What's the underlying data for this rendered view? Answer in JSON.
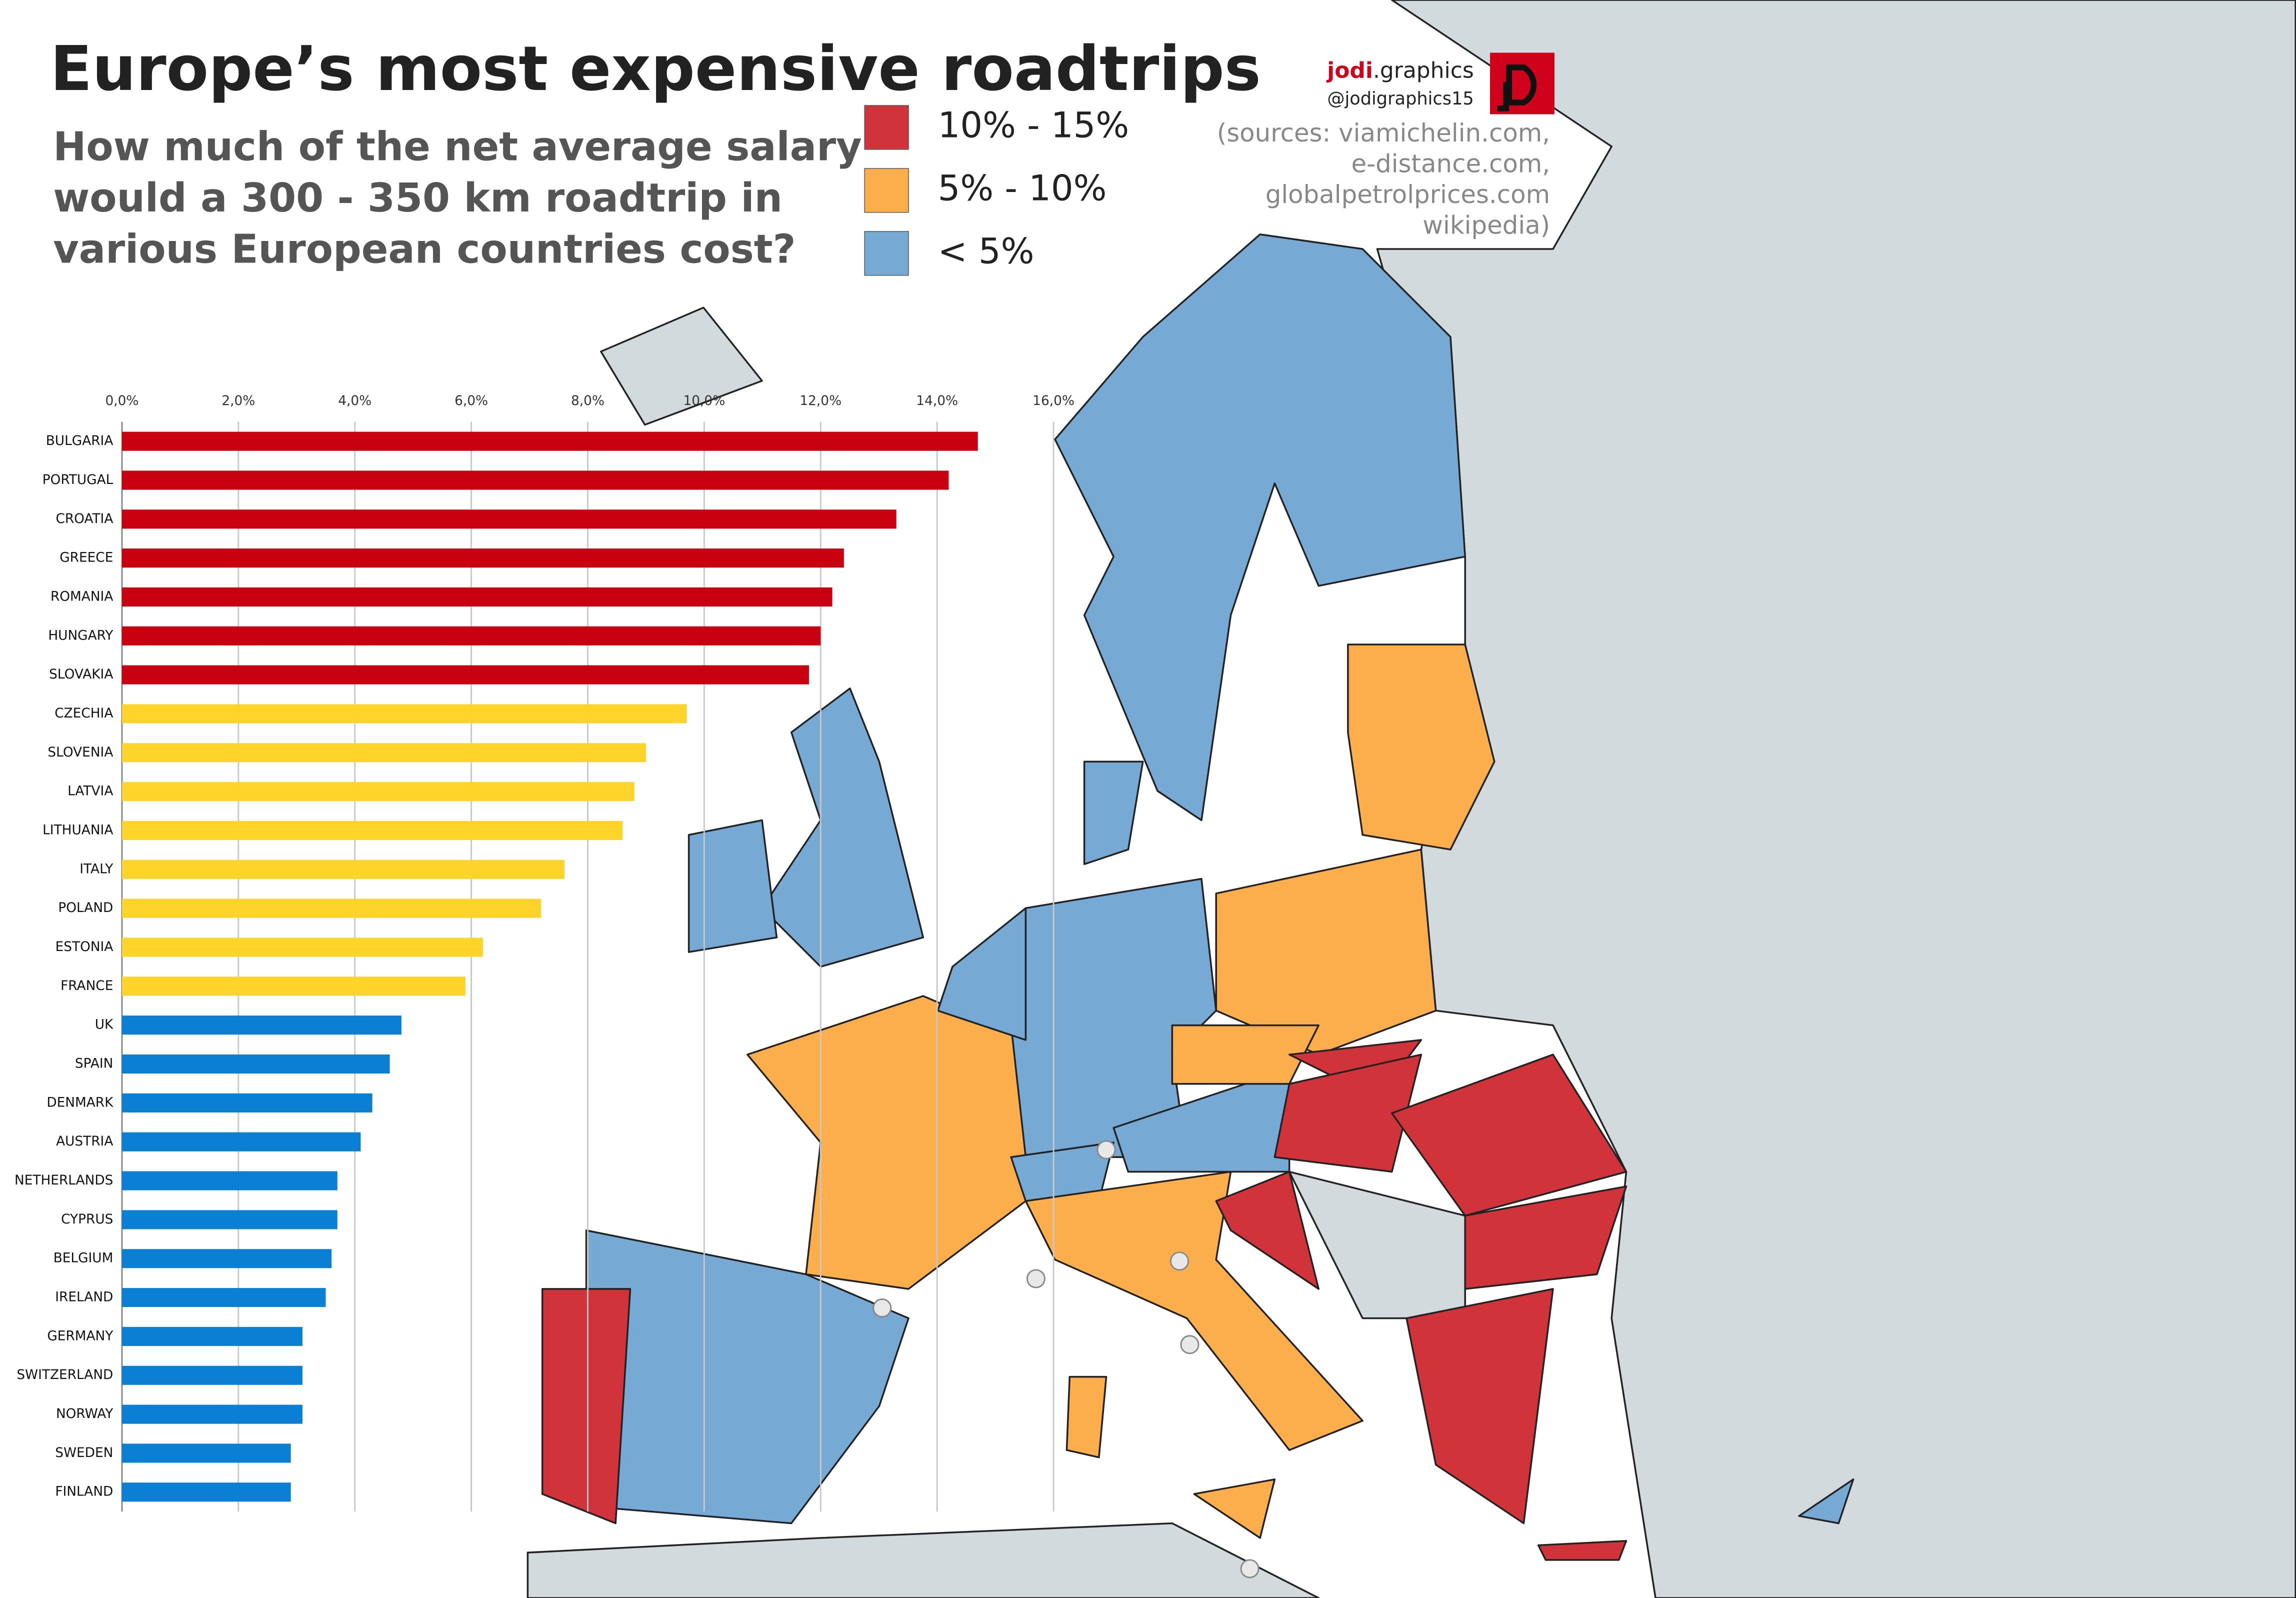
{
  "title": "Europe’s most expensive roadtrips",
  "subtitle": [
    "How much of the net average salary",
    "would a 300 - 350 km roadtrip in",
    "various European countries cost?"
  ],
  "brand": {
    "name": "jodi",
    "suffix": ".graphics",
    "handle": "@jodigraphics15"
  },
  "sources": [
    "(sources: viamichelin.com,",
    "e-distance.com,",
    "globalpetrolprices.com",
    "wikipedia)"
  ],
  "legend": [
    {
      "label": "10% - 15%",
      "color": "#d0343a"
    },
    {
      "label": "5% - 10%",
      "color": "#fbae4b"
    },
    {
      "label": "< 5%",
      "color": "#76a9d3"
    }
  ],
  "chart_data": {
    "type": "bar",
    "orientation": "horizontal",
    "categories": [
      "BULGARIA",
      "PORTUGAL",
      "CROATIA",
      "GREECE",
      "ROMANIA",
      "HUNGARY",
      "SLOVAKIA",
      "CZECHIA",
      "SLOVENIA",
      "LATVIA",
      "LITHUANIA",
      "ITALY",
      "POLAND",
      "ESTONIA",
      "FRANCE",
      "UK",
      "SPAIN",
      "DENMARK",
      "AUSTRIA",
      "NETHERLANDS",
      "CYPRUS",
      "BELGIUM",
      "IRELAND",
      "GERMANY",
      "SWITZERLAND",
      "NORWAY",
      "SWEDEN",
      "FINLAND"
    ],
    "values": [
      14.7,
      14.2,
      13.3,
      12.4,
      12.2,
      12.0,
      11.8,
      9.7,
      9.0,
      8.8,
      8.6,
      7.6,
      7.2,
      6.2,
      5.9,
      4.8,
      4.6,
      4.3,
      4.1,
      3.7,
      3.7,
      3.6,
      3.5,
      3.1,
      3.1,
      3.1,
      2.9,
      2.9
    ],
    "colors": [
      "#c8000f",
      "#c8000f",
      "#c8000f",
      "#c8000f",
      "#c8000f",
      "#c8000f",
      "#c8000f",
      "#ffd42a",
      "#ffd42a",
      "#ffd42a",
      "#ffd42a",
      "#ffd42a",
      "#ffd42a",
      "#ffd42a",
      "#ffd42a",
      "#0a7fd4",
      "#0a7fd4",
      "#0a7fd4",
      "#0a7fd4",
      "#0a7fd4",
      "#0a7fd4",
      "#0a7fd4",
      "#0a7fd4",
      "#0a7fd4",
      "#0a7fd4",
      "#0a7fd4",
      "#0a7fd4",
      "#0a7fd4"
    ],
    "xlim": [
      0,
      16
    ],
    "xticks": [
      {
        "value": 0,
        "label": "0,0%"
      },
      {
        "value": 2,
        "label": "2,0%"
      },
      {
        "value": 4,
        "label": "4,0%"
      },
      {
        "value": 6,
        "label": "6,0%"
      },
      {
        "value": 8,
        "label": "8,0%"
      },
      {
        "value": 10,
        "label": "10,0%"
      },
      {
        "value": 12,
        "label": "12,0%"
      },
      {
        "value": 14,
        "label": "14,0%"
      },
      {
        "value": 16,
        "label": "16,0%"
      }
    ],
    "grid": true
  }
}
